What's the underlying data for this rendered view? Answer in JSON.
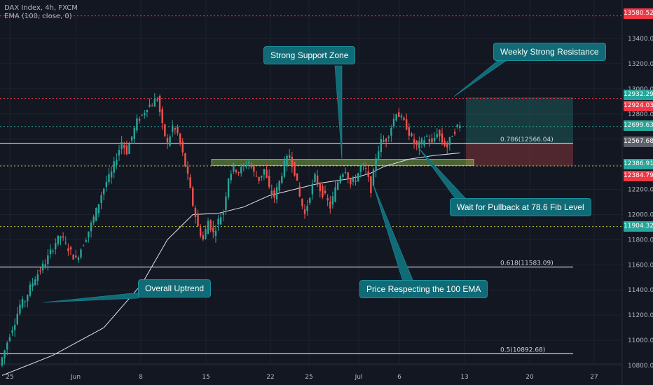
{
  "header": {
    "symbol": "DAX Index, 4h, FXCM",
    "indicator": "EMA (100, close, 0)"
  },
  "annotations": [
    {
      "id": "support-zone",
      "text": "Strong Support Zone"
    },
    {
      "id": "weekly-resistance",
      "text": "Weekly Strong Resistance"
    },
    {
      "id": "pullback",
      "text": "Wait for Pullback at 78.6 Fib Level"
    },
    {
      "id": "ema-respect",
      "text": "Price Respecting the 100 EMA"
    },
    {
      "id": "uptrend",
      "text": "Overall Uptrend"
    }
  ],
  "price_tags": [
    {
      "value": 13580.52,
      "label": "13580.52",
      "color": "#f23645"
    },
    {
      "value": 12932.29,
      "label": "12932.29",
      "color": "#26a69a"
    },
    {
      "value": 12924.03,
      "label": "12924.03",
      "color": "#f23645"
    },
    {
      "value": 12699.63,
      "label": "12699.63",
      "color": "#26a69a"
    },
    {
      "value": 12567.68,
      "label": "12567.68",
      "color": "#5d606b"
    },
    {
      "value": 12386.91,
      "label": "12386.91",
      "color": "#26a69a"
    },
    {
      "value": 12384.79,
      "label": "12384.79",
      "color": "#f23645"
    },
    {
      "value": 11904.32,
      "label": "11904.32",
      "color": "#26a69a"
    }
  ],
  "colors": {
    "background": "#131722",
    "grid": "#1e222d",
    "up": "#26a69a",
    "down": "#ef5350",
    "ema": "#e0e3eb",
    "resistance": "#f23645",
    "support_dotted": "#c3c935",
    "fib": "#ffffff"
  },
  "chart_data": {
    "type": "candlestick",
    "title": "DAX Index, 4h, FXCM",
    "y_axis": {
      "ticks": [
        10800,
        11000,
        11200,
        11400,
        11600,
        11800,
        12000,
        12200,
        12400,
        12600,
        12800,
        13000,
        13200,
        13400
      ],
      "tick_labels": [
        "10800.00",
        "11000.00",
        "11200.00",
        "11400.00",
        "11600.00",
        "11800.00",
        "12000.00",
        "12200.00",
        "12400.00",
        "12600.00",
        "12800.00",
        "13000.00",
        "13200.00",
        "13400.00"
      ],
      "range": [
        10780,
        13720
      ]
    },
    "x_axis": {
      "tick_labels": [
        "25",
        "Jun",
        "8",
        "15",
        "22",
        "25",
        "Jul",
        "6",
        "13",
        "20",
        "27"
      ]
    },
    "fib_levels": [
      {
        "ratio": "0.786",
        "value": 12566.04,
        "label": "0.786(12566.04)"
      },
      {
        "ratio": "0.618",
        "value": 11583.09,
        "label": "0.618(11583.09)"
      },
      {
        "ratio": "0.5",
        "value": 10892.68,
        "label": "0.5(10892.68)"
      }
    ],
    "horizontal_levels": [
      {
        "value": 13580.52,
        "style": "dotted",
        "color": "#f23645"
      },
      {
        "value": 12924.03,
        "style": "dotted",
        "color": "#f23645"
      },
      {
        "value": 12699.63,
        "style": "dotted",
        "color": "#26a69a"
      },
      {
        "value": 12386.91,
        "style": "dotted",
        "color": "#c3c935"
      },
      {
        "value": 11904.32,
        "style": "dotted",
        "color": "#c3c935"
      }
    ],
    "support_zone": {
      "low": 12390,
      "high": 12440
    },
    "position": {
      "entry": 12567.68,
      "target": 12932.29,
      "stop": 12384.79
    },
    "path_points": [
      [
        0,
        10800
      ],
      [
        2,
        10920
      ],
      [
        4,
        11050
      ],
      [
        6,
        11150
      ],
      [
        8,
        11280
      ],
      [
        10,
        11320
      ],
      [
        12,
        11420
      ],
      [
        14,
        11500
      ],
      [
        16,
        11560
      ],
      [
        18,
        11620
      ],
      [
        20,
        11700
      ],
      [
        22,
        11780
      ],
      [
        24,
        11830
      ],
      [
        26,
        11760
      ],
      [
        28,
        11700
      ],
      [
        30,
        11640
      ],
      [
        32,
        11730
      ],
      [
        34,
        11820
      ],
      [
        36,
        11920
      ],
      [
        38,
        12030
      ],
      [
        40,
        12160
      ],
      [
        42,
        12260
      ],
      [
        44,
        12330
      ],
      [
        46,
        12460
      ],
      [
        48,
        12580
      ],
      [
        50,
        12500
      ],
      [
        52,
        12620
      ],
      [
        54,
        12740
      ],
      [
        56,
        12790
      ],
      [
        58,
        12860
      ],
      [
        60,
        12880
      ],
      [
        62,
        12930
      ],
      [
        64,
        12700
      ],
      [
        66,
        12560
      ],
      [
        68,
        12700
      ],
      [
        70,
        12640
      ],
      [
        72,
        12480
      ],
      [
        74,
        12300
      ],
      [
        76,
        12080
      ],
      [
        78,
        11900
      ],
      [
        80,
        11800
      ],
      [
        82,
        11950
      ],
      [
        84,
        11850
      ],
      [
        86,
        11950
      ],
      [
        88,
        12030
      ],
      [
        90,
        12300
      ],
      [
        92,
        12380
      ],
      [
        94,
        12340
      ],
      [
        96,
        12380
      ],
      [
        98,
        12420
      ],
      [
        100,
        12330
      ],
      [
        102,
        12280
      ],
      [
        104,
        12360
      ],
      [
        106,
        12200
      ],
      [
        108,
        12140
      ],
      [
        110,
        12260
      ],
      [
        112,
        12400
      ],
      [
        114,
        12480
      ],
      [
        116,
        12340
      ],
      [
        118,
        12140
      ],
      [
        120,
        12000
      ],
      [
        122,
        12160
      ],
      [
        124,
        12300
      ],
      [
        126,
        12200
      ],
      [
        128,
        12140
      ],
      [
        130,
        12060
      ],
      [
        132,
        12200
      ],
      [
        134,
        12320
      ],
      [
        136,
        12360
      ],
      [
        138,
        12240
      ],
      [
        140,
        12280
      ],
      [
        142,
        12380
      ],
      [
        144,
        12350
      ],
      [
        146,
        12200
      ],
      [
        148,
        12460
      ],
      [
        150,
        12580
      ],
      [
        152,
        12600
      ],
      [
        154,
        12700
      ],
      [
        156,
        12820
      ],
      [
        158,
        12760
      ],
      [
        160,
        12700
      ],
      [
        162,
        12600
      ],
      [
        164,
        12540
      ],
      [
        166,
        12580
      ],
      [
        168,
        12620
      ],
      [
        170,
        12560
      ],
      [
        172,
        12660
      ],
      [
        174,
        12580
      ],
      [
        176,
        12540
      ],
      [
        178,
        12640
      ],
      [
        180,
        12700
      ]
    ],
    "ema_points": [
      [
        0,
        10720
      ],
      [
        20,
        10880
      ],
      [
        40,
        11100
      ],
      [
        55,
        11450
      ],
      [
        65,
        11800
      ],
      [
        75,
        12000
      ],
      [
        85,
        12010
      ],
      [
        95,
        12060
      ],
      [
        105,
        12150
      ],
      [
        115,
        12200
      ],
      [
        125,
        12250
      ],
      [
        135,
        12280
      ],
      [
        140,
        12300
      ],
      [
        145,
        12330
      ],
      [
        150,
        12380
      ],
      [
        160,
        12440
      ],
      [
        170,
        12470
      ],
      [
        180,
        12490
      ]
    ],
    "last_price": 12699.63
  }
}
